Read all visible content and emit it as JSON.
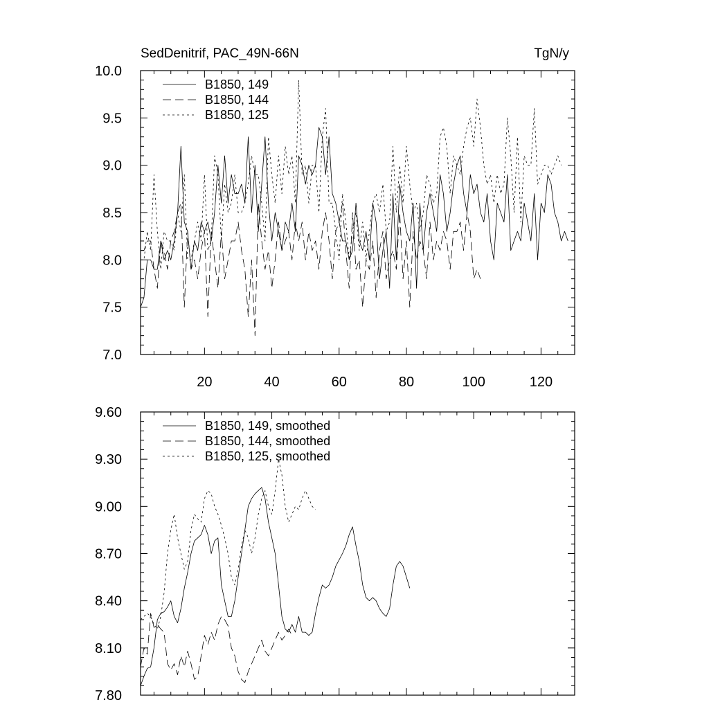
{
  "chart_data": [
    {
      "type": "line",
      "title": "SedDenitrif, PAC_49N-66N",
      "unit": "TgN/y",
      "xlim": [
        1,
        130
      ],
      "ylim": [
        7.0,
        10.0
      ],
      "x_ticks": [
        20,
        40,
        60,
        80,
        100,
        120
      ],
      "y_ticks": [
        "7.0",
        "7.5",
        "8.0",
        "8.5",
        "9.0",
        "9.5",
        "10.0"
      ],
      "legend_position": "top-left",
      "series": [
        {
          "name": "B1850, 149",
          "dash": "solid",
          "x_start": 1,
          "values": [
            7.5,
            7.6,
            8.0,
            8.0,
            7.9,
            7.9,
            8.2,
            8.0,
            8.1,
            8.0,
            8.2,
            8.5,
            9.2,
            8.4,
            8.3,
            7.9,
            8.2,
            8.1,
            8.4,
            8.3,
            8.4,
            8.2,
            8.5,
            9.0,
            8.6,
            9.1,
            8.6,
            8.9,
            8.7,
            8.7,
            8.8,
            8.6,
            9.3,
            8.5,
            9.0,
            8.3,
            8.8,
            9.3,
            8.6,
            8.2,
            8.5,
            8.3,
            8.1,
            8.4,
            8.3,
            8.6,
            8.3,
            9.1,
            9.0,
            8.8,
            9.0,
            8.9,
            9.0,
            9.4,
            9.3,
            8.9,
            9.3,
            8.7,
            8.6,
            8.4,
            8.2,
            8.2,
            8.0,
            8.1,
            8.6,
            8.2,
            8.1,
            8.3,
            8.0,
            8.6,
            8.4,
            7.8,
            8.1,
            8.3,
            7.7,
            8.7,
            8.0,
            8.8,
            8.5,
            8.3,
            8.2,
            8.6,
            7.7,
            8.6,
            8.1,
            8.5,
            8.7,
            8.5,
            8.3,
            8.9,
            8.7,
            8.3,
            8.5,
            8.8,
            9.0,
            9.1,
            8.7,
            8.5,
            8.9,
            8.7,
            8.8,
            8.5,
            8.4,
            8.7,
            8.2,
            8.0,
            8.6,
            8.5,
            8.4,
            8.9,
            8.1,
            8.2,
            8.3,
            8.2,
            8.6,
            8.4,
            8.2,
            8.7,
            8.0,
            8.6,
            8.5,
            8.9,
            8.8,
            8.5,
            8.4,
            8.2,
            8.3,
            8.2
          ]
        },
        {
          "name": "B1850, 144",
          "dash": "long-dash",
          "x_start": 1,
          "values": [
            8.1,
            8.1,
            8.2,
            8.2,
            7.9,
            7.7,
            8.2,
            8.1,
            7.9,
            8.2,
            8.3,
            8.5,
            8.6,
            7.5,
            8.3,
            7.9,
            8.0,
            7.8,
            8.1,
            8.3,
            7.4,
            8.3,
            8.0,
            7.7,
            8.3,
            7.8,
            8.0,
            8.2,
            8.2,
            8.4,
            8.1,
            7.9,
            7.4,
            8.0,
            7.2,
            8.6,
            8.2,
            7.9,
            8.1,
            7.7,
            8.0,
            8.4,
            8.1,
            8.2,
            8.3,
            8.0,
            8.4,
            8.2,
            8.4,
            8.0,
            8.3,
            8.1,
            8.2,
            7.9,
            8.3,
            8.5,
            8.2,
            7.8,
            8.3,
            8.4,
            8.6,
            8.1,
            7.7,
            8.5,
            7.9,
            8.0,
            7.5,
            8.0,
            7.9,
            8.2,
            7.6,
            8.1,
            8.3,
            7.8,
            8.0,
            8.1,
            7.9,
            8.5,
            7.8,
            8.2,
            7.5,
            8.3,
            8.0,
            8.2,
            8.1,
            7.8,
            8.4,
            8.0,
            8.2,
            8.1,
            8.3,
            8.2,
            7.9,
            8.3,
            8.3,
            8.4,
            8.1,
            8.5,
            8.3,
            7.8,
            7.9,
            7.8
          ]
        },
        {
          "name": "B1850, 125",
          "dash": "short-dash",
          "x_start": 1,
          "values": [
            8.0,
            8.0,
            8.3,
            8.1,
            8.9,
            8.3,
            7.9,
            8.3,
            8.2,
            8.2,
            8.1,
            8.5,
            8.3,
            8.9,
            8.0,
            8.0,
            8.2,
            8.4,
            8.2,
            8.9,
            8.1,
            8.2,
            9.1,
            8.9,
            8.2,
            8.8,
            8.5,
            8.6,
            8.9,
            8.5,
            8.5,
            8.6,
            8.8,
            9.1,
            8.9,
            8.9,
            8.6,
            8.2,
            9.3,
            8.9,
            8.6,
            9.1,
            8.7,
            9.2,
            8.9,
            9.1,
            8.6,
            9.9,
            8.9,
            9.0,
            8.6,
            9.0,
            9.0,
            8.5,
            9.3,
            9.6,
            8.6,
            8.6,
            8.3,
            8.0,
            8.7,
            8.4,
            8.0,
            8.3,
            8.5,
            8.1,
            8.4,
            8.0,
            8.3,
            8.6,
            8.7,
            8.5,
            8.8,
            8.3,
            8.4,
            9.2,
            8.5,
            9.0,
            8.6,
            9.2,
            8.8,
            8.5,
            8.6,
            8.3,
            8.5,
            8.9,
            8.8,
            8.6,
            8.7,
            9.3,
            9.4,
            9.2,
            8.7,
            9.1,
            9.0,
            8.9,
            9.2,
            9.4,
            9.5,
            9.2,
            9.7,
            9.4,
            9.0,
            8.8,
            8.9,
            8.6,
            8.9,
            8.7,
            8.8,
            9.5,
            9.1,
            8.5,
            9.3,
            8.4,
            9.1,
            9.0,
            9.0,
            9.6,
            8.8,
            8.9,
            9.0,
            9.0,
            8.9,
            9.0,
            9.1,
            9.0
          ]
        }
      ]
    },
    {
      "type": "line",
      "title": "",
      "xlim": [
        1,
        130
      ],
      "ylim": [
        7.8,
        9.6
      ],
      "y_ticks": [
        "7.80",
        "8.10",
        "8.40",
        "8.70",
        "9.00",
        "9.30",
        "9.60"
      ],
      "legend_position": "top-left",
      "series": [
        {
          "name": "B1850, 149, smoothed",
          "dash": "solid",
          "x_start": 1,
          "values": [
            7.86,
            7.92,
            7.97,
            7.98,
            8.1,
            8.28,
            8.32,
            8.33,
            8.36,
            8.4,
            8.3,
            8.26,
            8.35,
            8.48,
            8.58,
            8.7,
            8.78,
            8.8,
            8.82,
            8.88,
            8.82,
            8.7,
            8.78,
            8.8,
            8.5,
            8.4,
            8.3,
            8.3,
            8.4,
            8.55,
            8.7,
            8.85,
            9.0,
            9.05,
            9.08,
            9.1,
            9.12,
            9.05,
            8.9,
            8.8,
            8.7,
            8.5,
            8.3,
            8.22,
            8.2,
            8.25,
            8.2,
            8.3,
            8.2,
            8.2,
            8.18,
            8.2,
            8.32,
            8.42,
            8.5,
            8.48,
            8.5,
            8.55,
            8.62,
            8.66,
            8.7,
            8.75,
            8.82,
            8.87,
            8.75,
            8.65,
            8.5,
            8.42,
            8.4,
            8.42,
            8.4,
            8.35,
            8.32,
            8.3,
            8.35,
            8.5,
            8.62,
            8.65,
            8.62,
            8.55,
            8.48
          ]
        },
        {
          "name": "B1850, 144, smoothed",
          "dash": "long-dash",
          "x_start": 1,
          "values": [
            7.98,
            8.1,
            8.06,
            8.32,
            8.23,
            8.25,
            8.22,
            8.2,
            8.0,
            7.96,
            8.0,
            7.93,
            8.05,
            7.98,
            8.08,
            8.0,
            7.9,
            7.92,
            8.05,
            8.18,
            8.12,
            8.2,
            8.15,
            8.25,
            8.3,
            8.28,
            8.24,
            8.1,
            8.05,
            7.95,
            7.9,
            7.88,
            7.95,
            8.0,
            8.05,
            8.1,
            8.15,
            8.08,
            8.05,
            8.1,
            8.15,
            8.2,
            8.15,
            8.18,
            8.22,
            8.18
          ]
        },
        {
          "name": "B1850, 125, smoothed",
          "dash": "short-dash",
          "x_start": 1,
          "values": [
            8.28,
            8.3,
            8.32,
            8.3,
            8.25,
            8.22,
            8.3,
            8.45,
            8.7,
            8.85,
            8.95,
            8.8,
            8.7,
            8.6,
            8.65,
            8.85,
            8.95,
            8.92,
            8.9,
            9.05,
            9.1,
            9.08,
            9.0,
            8.95,
            8.88,
            8.8,
            8.7,
            8.55,
            8.5,
            8.6,
            8.75,
            8.85,
            8.8,
            8.7,
            8.8,
            8.95,
            9.05,
            9.1,
            9.0,
            8.95,
            9.1,
            9.3,
            9.2,
            9.0,
            8.9,
            8.95,
            9.0,
            8.98,
            9.05,
            9.1,
            9.05,
            9.0,
            8.98
          ]
        }
      ]
    }
  ]
}
